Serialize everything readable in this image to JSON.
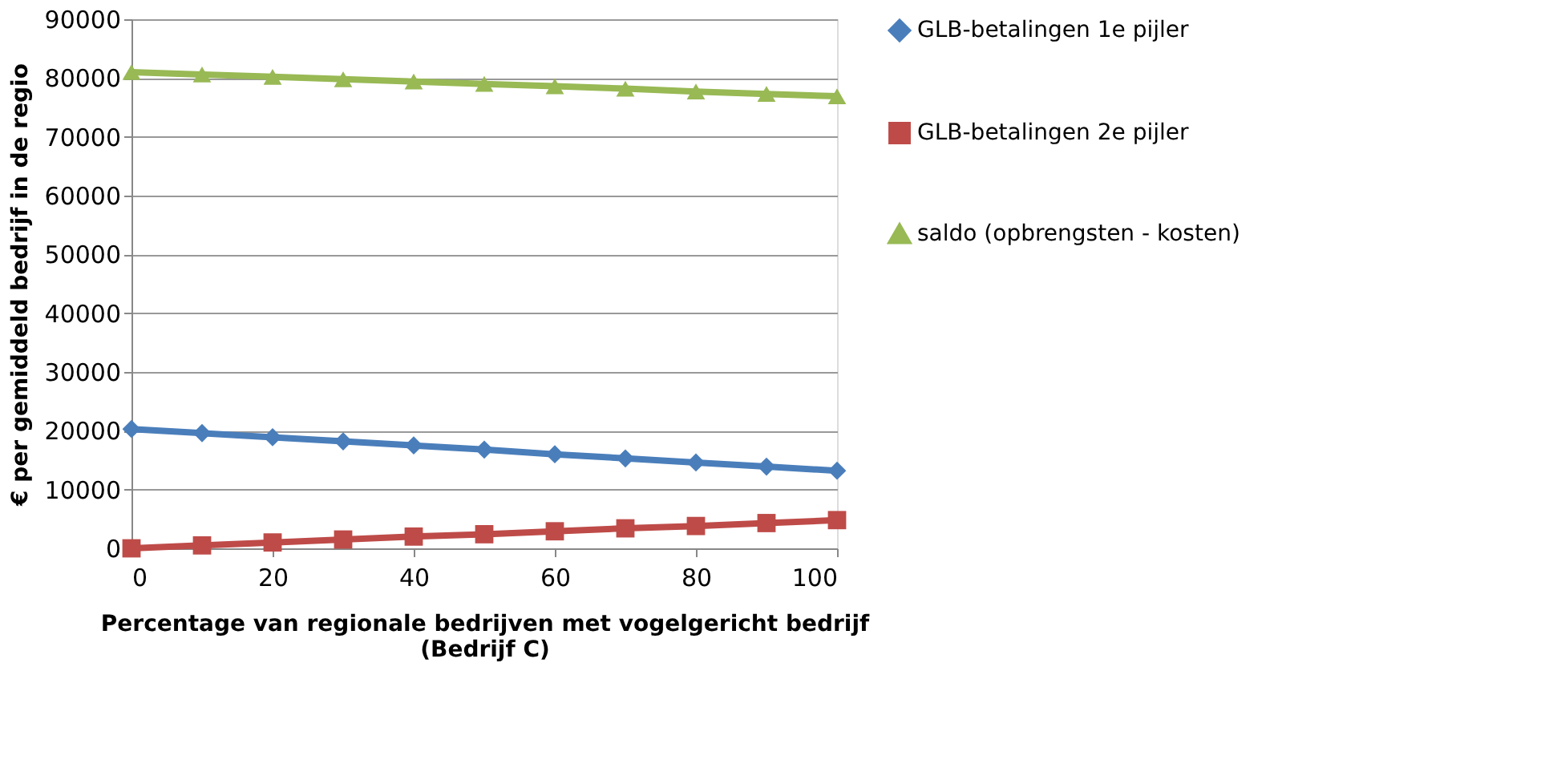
{
  "chart_data": {
    "type": "line",
    "xlabel": "Percentage van regionale bedrijven met vogelgericht bedrijf (Bedrijf C)",
    "ylabel": "€ per gemiddeld bedrijf in de regio",
    "x": [
      0,
      10,
      20,
      30,
      40,
      50,
      60,
      70,
      80,
      90,
      100
    ],
    "xlim": [
      0,
      100
    ],
    "xticks": [
      0,
      20,
      40,
      60,
      80,
      100
    ],
    "ylim": [
      0,
      90000
    ],
    "yticks": [
      0,
      10000,
      20000,
      30000,
      40000,
      50000,
      60000,
      70000,
      80000,
      90000
    ],
    "grid": "y",
    "legend": "right",
    "line_style": "solid",
    "series": [
      {
        "name": "GLB-betalingen 1e pijler",
        "color": "#4a7ebb",
        "marker": "diamond",
        "values": [
          20300,
          19600,
          18900,
          18200,
          17500,
          16800,
          16000,
          15300,
          14600,
          13900,
          13200
        ]
      },
      {
        "name": "GLB-betalingen 2e pijler",
        "color": "#be4b48",
        "marker": "square",
        "values": [
          0,
          500,
          1000,
          1500,
          2000,
          2400,
          2900,
          3400,
          3800,
          4300,
          4800
        ]
      },
      {
        "name": "saldo (opbrengsten - kosten)",
        "color": "#98b954",
        "marker": "triangle",
        "values": [
          81000,
          80600,
          80200,
          79800,
          79400,
          79000,
          78600,
          78200,
          77700,
          77300,
          76900
        ]
      }
    ]
  }
}
